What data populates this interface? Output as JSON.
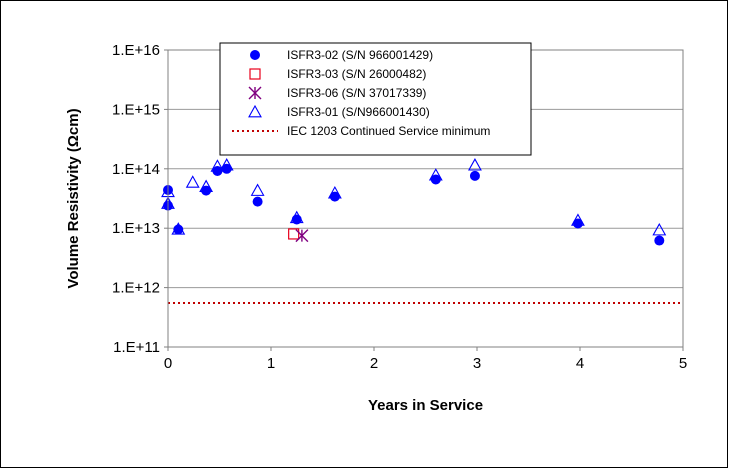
{
  "chart_data": {
    "type": "scatter",
    "xlabel": "Years in Service",
    "ylabel": "Volume Resistivity (Ωcm)",
    "xlim": [
      0,
      5
    ],
    "ylim": [
      100000000000.0,
      1e+16
    ],
    "yscale": "log",
    "x_ticks": [
      "0",
      "1",
      "2",
      "3",
      "4",
      "5"
    ],
    "y_ticks": [
      "1.E+11",
      "1.E+12",
      "1.E+13",
      "1.E+14",
      "1.E+15",
      "1.E+16"
    ],
    "grid": "horizontal",
    "legend_position": "top-center",
    "series": [
      {
        "name": "ISFR3-02 (S/N 966001429)",
        "marker": "filled-circle",
        "color": "#0000ff",
        "points": [
          [
            0.0,
            24000000000000.0
          ],
          [
            0.0,
            44000000000000.0
          ],
          [
            0.1,
            9500000000000.0
          ],
          [
            0.37,
            43000000000000.0
          ],
          [
            0.48,
            92000000000000.0
          ],
          [
            0.57,
            100000000000000.0
          ],
          [
            0.87,
            28000000000000.0
          ],
          [
            1.25,
            14000000000000.0
          ],
          [
            1.62,
            34000000000000.0
          ],
          [
            2.6,
            66000000000000.0
          ],
          [
            2.98,
            76000000000000.0
          ],
          [
            3.98,
            12000000000000.0
          ],
          [
            4.77,
            6200000000000.0
          ]
        ]
      },
      {
        "name": "ISFR3-03 (S/N 26000482)",
        "marker": "open-square",
        "color": "#e8001c",
        "points": [
          [
            1.22,
            8000000000000.0
          ]
        ]
      },
      {
        "name": "ISFR3-06 (S/N 37017339)",
        "marker": "star",
        "color": "#800080",
        "points": [
          [
            1.3,
            7500000000000.0
          ]
        ]
      },
      {
        "name": "ISFR3-01 (S/N966001430)",
        "marker": "open-triangle",
        "color": "#0000ff",
        "points": [
          [
            0.0,
            26000000000000.0
          ],
          [
            0.0,
            41000000000000.0
          ],
          [
            0.1,
            9600000000000.0
          ],
          [
            0.24,
            59000000000000.0
          ],
          [
            0.37,
            50000000000000.0
          ],
          [
            0.48,
            110000000000000.0
          ],
          [
            0.57,
            115000000000000.0
          ],
          [
            0.87,
            43000000000000.0
          ],
          [
            1.25,
            15000000000000.0
          ],
          [
            1.62,
            39000000000000.0
          ],
          [
            2.6,
            78000000000000.0
          ],
          [
            2.98,
            115000000000000.0
          ],
          [
            3.98,
            13500000000000.0
          ],
          [
            4.77,
            9300000000000.0
          ]
        ]
      }
    ],
    "reference_line": {
      "name": "IEC 1203 Continued Service minimum",
      "value": 550000000000.0,
      "style": "dotted",
      "color": "#c00000"
    }
  }
}
